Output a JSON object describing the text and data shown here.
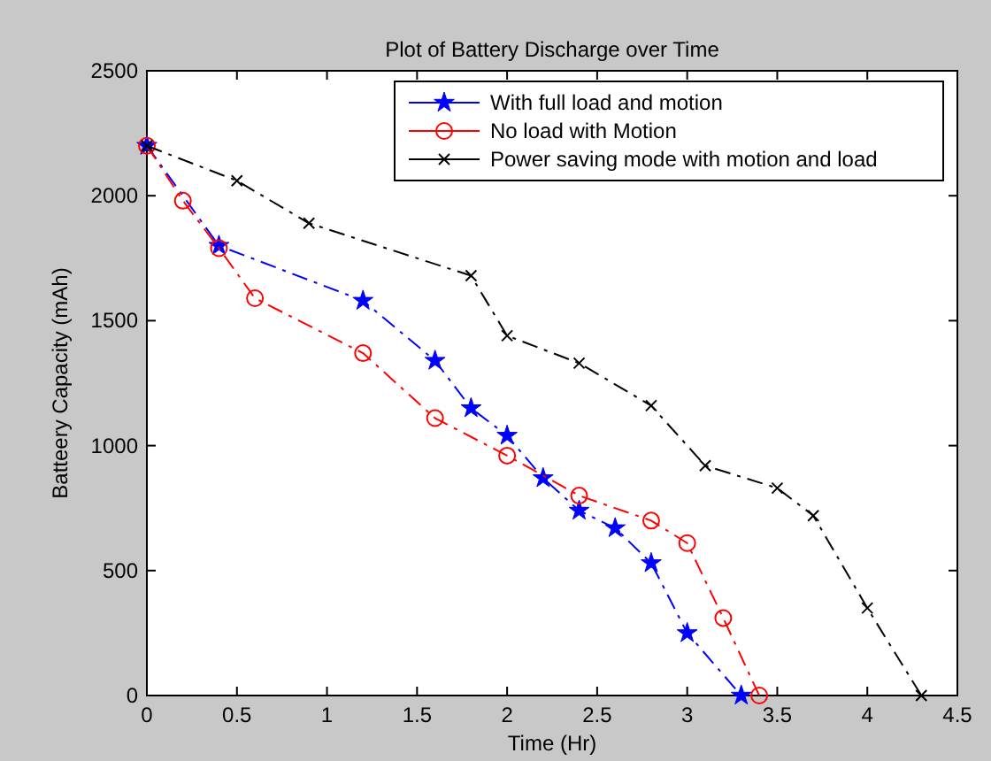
{
  "chart_data": {
    "type": "line",
    "title": "Plot of Battery Discharge over Time",
    "xlabel": "Time (Hr)",
    "ylabel": "Batteery Capacity (mAh)",
    "xlim": [
      0,
      4.5
    ],
    "xticks": [
      0,
      0.5,
      1,
      1.5,
      2,
      2.5,
      3,
      3.5,
      4,
      4.5
    ],
    "ylim": [
      0,
      2500
    ],
    "yticks": [
      0,
      500,
      1000,
      1500,
      2000,
      2500
    ],
    "grid": false,
    "legend": "top right",
    "line_style": "dashed",
    "series": [
      {
        "name": "With full load and motion",
        "color": "#0000ff",
        "marker": "star",
        "x": [
          0,
          0.4,
          1.2,
          1.6,
          1.8,
          2.0,
          2.2,
          2.4,
          2.6,
          2.8,
          3.0,
          3.3
        ],
        "values": [
          2200,
          1800,
          1580,
          1340,
          1150,
          1040,
          870,
          740,
          670,
          530,
          250,
          0
        ]
      },
      {
        "name": "No load with Motion",
        "color": "#ff0000",
        "marker": "circle",
        "x": [
          0,
          0.2,
          0.4,
          0.6,
          1.2,
          1.6,
          2.0,
          2.4,
          2.8,
          3.0,
          3.2,
          3.4
        ],
        "values": [
          2200,
          1980,
          1790,
          1590,
          1370,
          1110,
          960,
          800,
          700,
          610,
          310,
          0
        ]
      },
      {
        "name": "Power saving mode with motion and load",
        "color": "#000000",
        "marker": "cross",
        "x": [
          0,
          0.5,
          0.9,
          1.8,
          2.0,
          2.4,
          2.8,
          3.1,
          3.5,
          3.7,
          4.0,
          4.3
        ],
        "values": [
          2200,
          2060,
          1890,
          1680,
          1440,
          1330,
          1160,
          920,
          830,
          720,
          350,
          0
        ]
      }
    ]
  }
}
